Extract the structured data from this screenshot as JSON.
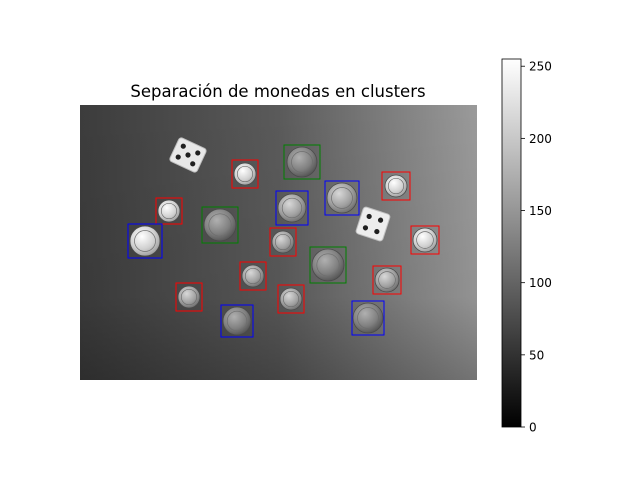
{
  "chart_data": {
    "type": "image",
    "title": "Separación de monedas en clusters",
    "image_description_colormap": "gray",
    "objects": {
      "dice": [
        {
          "label": "die"
        },
        {
          "label": "die"
        }
      ],
      "coins": [
        {
          "cluster": "red"
        },
        {
          "cluster": "red"
        },
        {
          "cluster": "red"
        },
        {
          "cluster": "red"
        },
        {
          "cluster": "red"
        },
        {
          "cluster": "red"
        },
        {
          "cluster": "red"
        },
        {
          "cluster": "red"
        },
        {
          "cluster": "red"
        },
        {
          "cluster": "green"
        },
        {
          "cluster": "green"
        },
        {
          "cluster": "green"
        },
        {
          "cluster": "blue"
        },
        {
          "cluster": "blue"
        },
        {
          "cluster": "blue"
        },
        {
          "cluster": "blue"
        },
        {
          "cluster": "blue"
        }
      ]
    },
    "cluster_colors": {
      "red": "#ff0000",
      "green": "#008000",
      "blue": "#0000ff"
    },
    "colorbar": {
      "range": [
        0,
        255
      ],
      "ticks": [
        "0",
        "50",
        "100",
        "150",
        "200",
        "250"
      ],
      "colormap": "gray"
    }
  }
}
